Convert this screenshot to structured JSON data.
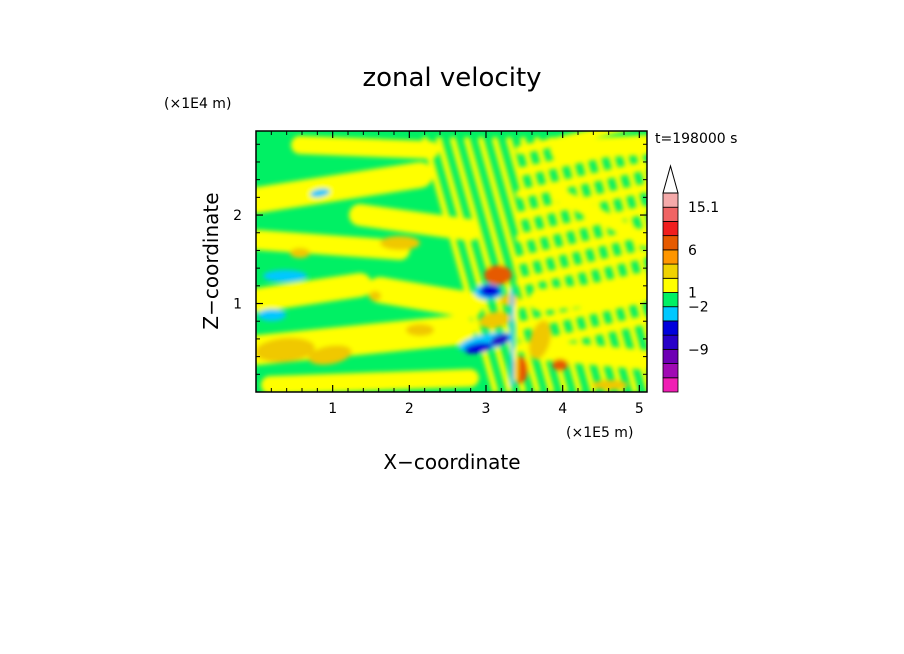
{
  "chart_data": {
    "type": "heatmap",
    "title": "zonal velocity",
    "xlabel": "X−coordinate",
    "ylabel": "Z−coordinate",
    "x_unit_label": "(×1E5 m)",
    "y_unit_label": "(×1E4 m)",
    "time_label": "t=198000 s",
    "xlim": [
      0,
      5.1
    ],
    "ylim": [
      0,
      2.95
    ],
    "x_ticks": [
      {
        "value": 1,
        "label": "1"
      },
      {
        "value": 2,
        "label": "2"
      },
      {
        "value": 3,
        "label": "3"
      },
      {
        "value": 4,
        "label": "4"
      },
      {
        "value": 5,
        "label": "5"
      }
    ],
    "y_ticks": [
      {
        "value": 1,
        "label": "1"
      },
      {
        "value": 2,
        "label": "2"
      }
    ],
    "colorbar": {
      "levels": [
        {
          "color": "#f01eb4"
        },
        {
          "color": "#a00ab4"
        },
        {
          "color": "#6e00b4"
        },
        {
          "color": "#2800c8"
        },
        {
          "color": "#0000dc"
        },
        {
          "color": "#00c8ff"
        },
        {
          "color": "#00f064"
        },
        {
          "color": "#ffff00"
        },
        {
          "color": "#f0d200"
        },
        {
          "color": "#ff9600"
        },
        {
          "color": "#e65a00"
        },
        {
          "color": "#f01e1e"
        },
        {
          "color": "#f06464"
        },
        {
          "color": "#f5aaaa"
        }
      ],
      "labels": [
        "15.1",
        "6",
        "1",
        "−2",
        "−9"
      ]
    },
    "field_description_colors": {
      "background": "#00f064",
      "yellow": "#ffff00",
      "orange": "#f0c800",
      "red": "#e65a00",
      "cyan": "#00c8ff",
      "blue": "#0000dc",
      "navy": "#2800c8"
    }
  }
}
